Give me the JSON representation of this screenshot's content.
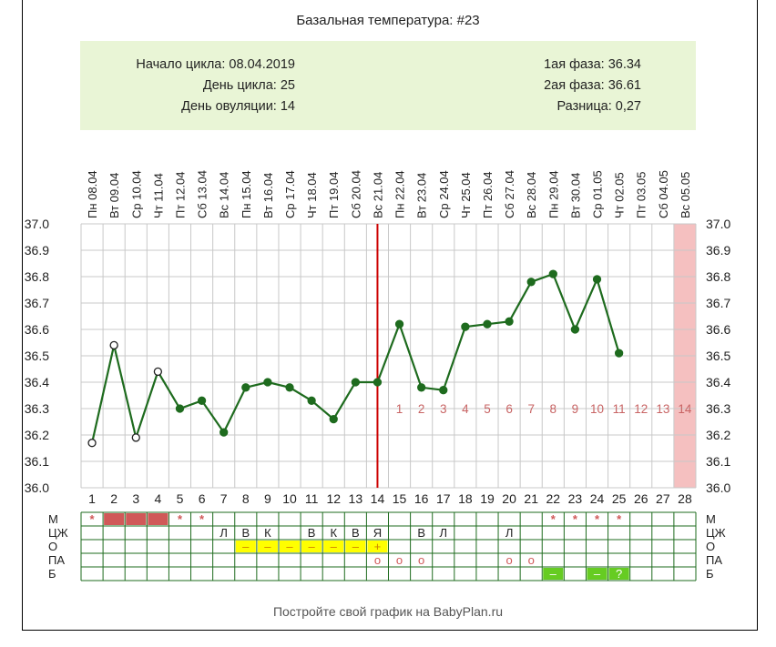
{
  "title": "Базальная температура: #23",
  "info": {
    "left": [
      {
        "label": "Начало цикла",
        "value": "08.04.2019"
      },
      {
        "label": "День цикла",
        "value": "25"
      },
      {
        "label": "День овуляции",
        "value": "14"
      }
    ],
    "right": [
      {
        "label": "1ая фаза",
        "value": "36.34"
      },
      {
        "label": "2ая фаза",
        "value": "36.61"
      },
      {
        "label": "Разница",
        "value": "0,27"
      }
    ]
  },
  "footer": "Постройте свой график на BabyPlan.ru",
  "chart_data": {
    "type": "line",
    "dates": [
      "Пн 08.04",
      "Вт 09.04",
      "Ср 10.04",
      "Чт 11.04",
      "Пт 12.04",
      "Сб 13.04",
      "Вс 14.04",
      "Пн 15.04",
      "Вт 16.04",
      "Ср 17.04",
      "Чт 18.04",
      "Пт 19.04",
      "Сб 20.04",
      "Вс 21.04",
      "Пн 22.04",
      "Вт 23.04",
      "Ср 24.04",
      "Чт 25.04",
      "Пт 26.04",
      "Сб 27.04",
      "Вс 28.04",
      "Пн 29.04",
      "Вт 30.04",
      "Ср 01.05",
      "Чт 02.05",
      "Пт 03.05",
      "Сб 04.05",
      "Вс 05.05"
    ],
    "days": [
      1,
      2,
      3,
      4,
      5,
      6,
      7,
      8,
      9,
      10,
      11,
      12,
      13,
      14,
      15,
      16,
      17,
      18,
      19,
      20,
      21,
      22,
      23,
      24,
      25,
      26,
      27,
      28
    ],
    "temperatures": [
      36.17,
      36.54,
      36.19,
      36.44,
      36.3,
      36.33,
      36.21,
      36.38,
      36.4,
      36.38,
      36.33,
      36.26,
      36.4,
      36.4,
      36.62,
      36.38,
      36.37,
      36.61,
      36.62,
      36.63,
      36.78,
      36.81,
      36.6,
      36.79,
      36.51,
      null,
      null,
      null
    ],
    "open_markers": [
      1,
      2,
      3,
      4
    ],
    "ylim": [
      36.0,
      37.0
    ],
    "yticks": [
      "37.0",
      "36.9",
      "36.8",
      "36.7",
      "36.6",
      "36.5",
      "36.4",
      "36.3",
      "36.2",
      "36.1",
      "36.0"
    ],
    "ovulation_day": 14,
    "luteal_labels": [
      "1",
      "2",
      "3",
      "4",
      "5",
      "6",
      "7",
      "8",
      "9",
      "10",
      "11",
      "12",
      "13",
      "14"
    ],
    "luteal_label_value": 36.3,
    "highlight_day": 28,
    "colors": {
      "line": "#1e6b1e",
      "grid": "#c8c8c8",
      "ovulation": "#cc0000",
      "highlight": "#f5c0c0",
      "luteal_label": "#c86464",
      "table_border": "#1e6b1e"
    },
    "rows": [
      {
        "label": "М",
        "cells": {
          "1": "*",
          "5": "*",
          "6": "*",
          "22": "*",
          "23": "*",
          "24": "*",
          "25": "*"
        },
        "fill": {
          "2": "#d05858",
          "3": "#d05858",
          "4": "#d05858"
        },
        "color": "#d05858"
      },
      {
        "label": "ЦЖ",
        "cells": {
          "7": "Л",
          "8": "В",
          "9": "К",
          "11": "В",
          "12": "К",
          "13": "В",
          "14": "Я",
          "16": "В",
          "17": "Л",
          "20": "Л"
        },
        "fill": {},
        "color": "#222222"
      },
      {
        "label": "О",
        "cells": {
          "8": "–",
          "9": "–",
          "10": "–",
          "11": "–",
          "12": "–",
          "13": "–",
          "14": "+"
        },
        "fill": {
          "8": "#ffff00",
          "9": "#ffff00",
          "10": "#ffff00",
          "11": "#ffff00",
          "12": "#ffff00",
          "13": "#ffff00",
          "14": "#ffff00"
        },
        "color": "#d08000"
      },
      {
        "label": "ПА",
        "cells": {
          "14": "o",
          "15": "o",
          "16": "o",
          "20": "o",
          "21": "o"
        },
        "fill": {},
        "color": "#d05858"
      },
      {
        "label": "Б",
        "cells": {
          "22": "–",
          "24": "–",
          "25": "?"
        },
        "fill": {
          "22": "#66cc22",
          "24": "#66cc22",
          "25": "#66cc22"
        },
        "color": "#ffffff"
      }
    ]
  }
}
